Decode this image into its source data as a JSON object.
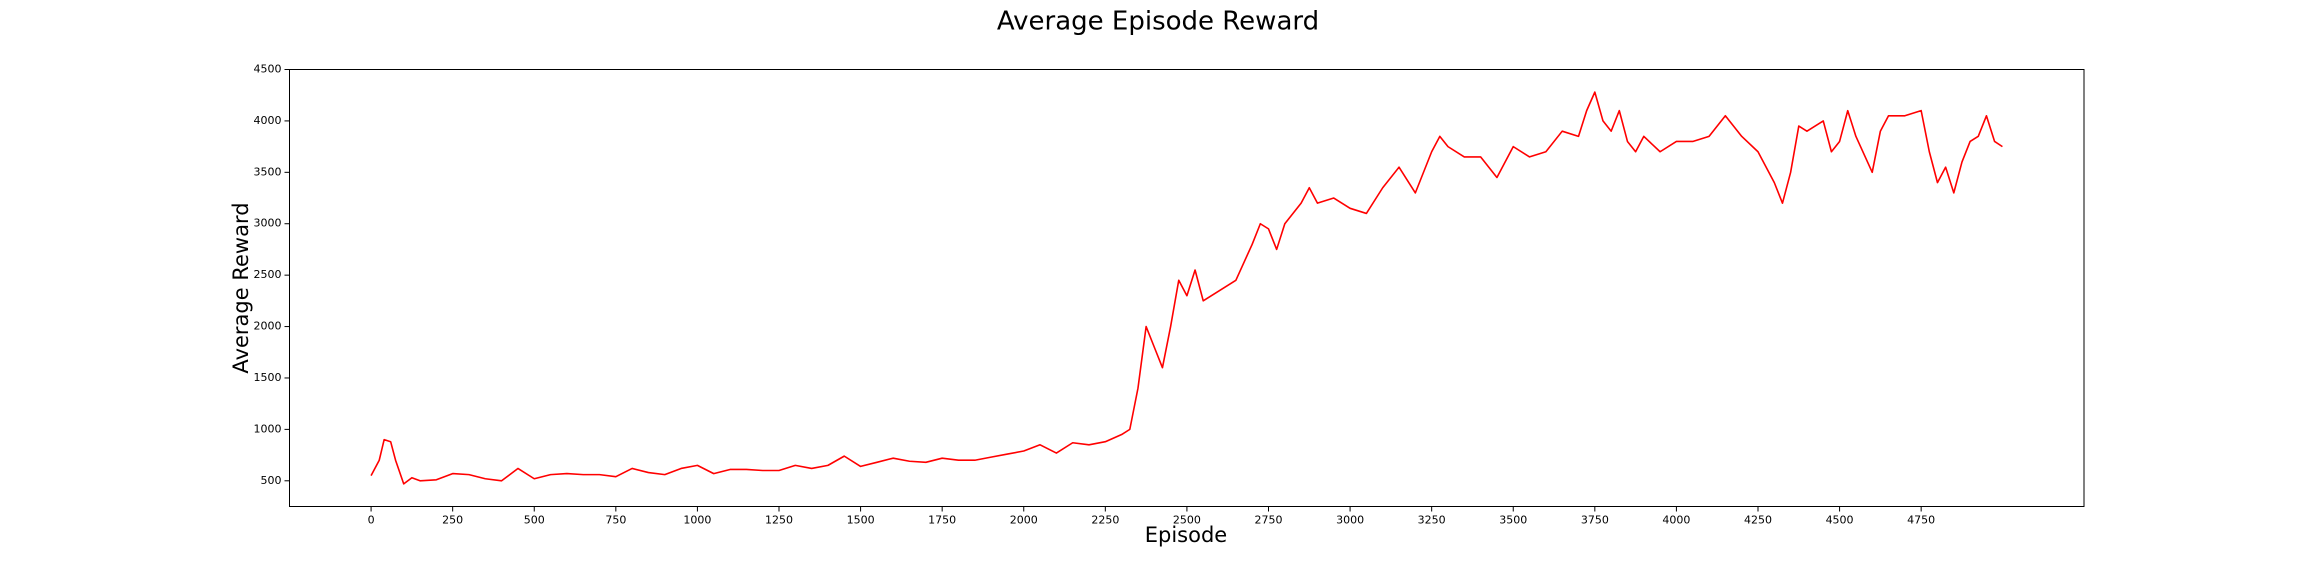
{
  "chart_data": {
    "type": "line",
    "title": "Average Episode Reward",
    "xlabel": "Episode",
    "ylabel": "Average Reward",
    "xlim": [
      -250,
      5249
    ],
    "ylim": [
      250,
      4500
    ],
    "xticks": [
      0,
      250,
      500,
      750,
      1000,
      1250,
      1500,
      1750,
      2000,
      2250,
      2500,
      2750,
      3000,
      3250,
      3500,
      3750,
      4000,
      4250,
      4500,
      4750
    ],
    "yticks": [
      500,
      1000,
      1500,
      2000,
      2500,
      3000,
      3500,
      4000,
      4500
    ],
    "series": [
      {
        "color": "#ff0000",
        "x": [
          0,
          25,
          40,
          60,
          75,
          100,
          125,
          150,
          200,
          250,
          300,
          350,
          400,
          450,
          500,
          550,
          600,
          650,
          700,
          750,
          800,
          850,
          900,
          950,
          1000,
          1050,
          1100,
          1150,
          1200,
          1250,
          1300,
          1350,
          1400,
          1450,
          1500,
          1550,
          1600,
          1650,
          1700,
          1750,
          1800,
          1850,
          1900,
          1950,
          2000,
          2050,
          2100,
          2150,
          2200,
          2250,
          2300,
          2325,
          2350,
          2375,
          2400,
          2425,
          2450,
          2475,
          2500,
          2525,
          2550,
          2600,
          2650,
          2700,
          2725,
          2750,
          2775,
          2800,
          2850,
          2875,
          2900,
          2950,
          3000,
          3050,
          3100,
          3150,
          3200,
          3250,
          3275,
          3300,
          3350,
          3400,
          3450,
          3500,
          3550,
          3600,
          3650,
          3700,
          3725,
          3750,
          3775,
          3800,
          3825,
          3850,
          3875,
          3900,
          3950,
          4000,
          4050,
          4100,
          4150,
          4200,
          4250,
          4300,
          4325,
          4350,
          4375,
          4400,
          4450,
          4475,
          4500,
          4525,
          4550,
          4600,
          4625,
          4650,
          4700,
          4750,
          4775,
          4800,
          4825,
          4850,
          4875,
          4900,
          4925,
          4950,
          4975,
          4999
        ],
        "values": [
          550,
          700,
          900,
          880,
          700,
          470,
          530,
          500,
          510,
          570,
          560,
          520,
          500,
          620,
          520,
          560,
          570,
          560,
          560,
          540,
          620,
          580,
          560,
          620,
          650,
          570,
          610,
          610,
          600,
          600,
          650,
          620,
          650,
          740,
          640,
          680,
          720,
          690,
          680,
          720,
          700,
          700,
          730,
          760,
          790,
          850,
          770,
          870,
          850,
          880,
          950,
          1000,
          1400,
          2000,
          1800,
          1600,
          2000,
          2450,
          2300,
          2550,
          2250,
          2350,
          2450,
          2800,
          3000,
          2950,
          2750,
          3000,
          3200,
          3350,
          3200,
          3250,
          3150,
          3100,
          3350,
          3550,
          3300,
          3700,
          3850,
          3750,
          3650,
          3650,
          3450,
          3750,
          3650,
          3700,
          3900,
          3850,
          4100,
          4280,
          4000,
          3900,
          4100,
          3800,
          3700,
          3850,
          3700,
          3800,
          3800,
          3850,
          4050,
          3850,
          3700,
          3400,
          3200,
          3500,
          3950,
          3900,
          4000,
          3700,
          3800,
          4100,
          3850,
          3500,
          3900,
          4050,
          4050,
          4100,
          3700,
          3400,
          3550,
          3300,
          3600,
          3800,
          3850,
          4050,
          3800,
          3750
        ]
      }
    ]
  }
}
